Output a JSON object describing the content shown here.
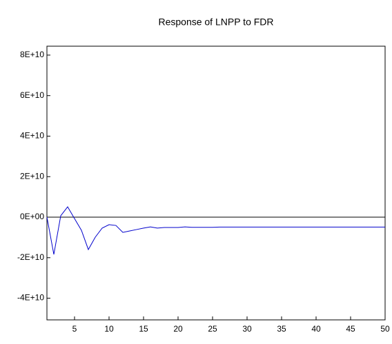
{
  "chart_data": {
    "type": "line",
    "title": "Response of LNPP to FDR",
    "x": [
      1,
      2,
      3,
      4,
      5,
      6,
      7,
      8,
      9,
      10,
      11,
      12,
      13,
      14,
      15,
      16,
      17,
      18,
      19,
      20,
      21,
      22,
      23,
      24,
      25,
      26,
      27,
      28,
      29,
      30,
      31,
      32,
      33,
      34,
      35,
      36,
      37,
      38,
      39,
      40,
      41,
      42,
      43,
      44,
      45,
      46,
      47,
      48,
      49,
      50
    ],
    "values": [
      0,
      -18400000000,
      700000000,
      5100000000,
      -700000000,
      -6500000000,
      -16000000000,
      -9900000000,
      -5400000000,
      -3700000000,
      -4100000000,
      -7500000000,
      -6800000000,
      -6100000000,
      -5400000000,
      -4800000000,
      -5400000000,
      -5100000000,
      -5100000000,
      -5100000000,
      -4800000000,
      -5000000000,
      -5000000000,
      -5000000000,
      -5000000000,
      -4900000000,
      -4900000000,
      -4900000000,
      -4900000000,
      -4900000000,
      -4900000000,
      -4900000000,
      -4900000000,
      -4900000000,
      -4900000000,
      -4900000000,
      -4900000000,
      -4900000000,
      -4900000000,
      -4900000000,
      -4900000000,
      -4900000000,
      -4900000000,
      -4900000000,
      -4900000000,
      -4900000000,
      -4900000000,
      -4900000000,
      -4900000000,
      -4900000000
    ],
    "color": "#0000cc",
    "xlim": [
      1,
      50
    ],
    "xticks": [
      5,
      10,
      15,
      20,
      25,
      30,
      35,
      40,
      45,
      50
    ],
    "ylim": [
      -50700000000,
      84400000000
    ],
    "yticks": [
      {
        "value": 80000000000,
        "label": "8E+10"
      },
      {
        "value": 60000000000,
        "label": "6E+10"
      },
      {
        "value": 40000000000,
        "label": "4E+10"
      },
      {
        "value": 20000000000,
        "label": "2E+10"
      },
      {
        "value": 0,
        "label": "0E+00"
      },
      {
        "value": -20000000000,
        "label": "-2E+10"
      },
      {
        "value": -40000000000,
        "label": "-4E+10"
      }
    ]
  }
}
